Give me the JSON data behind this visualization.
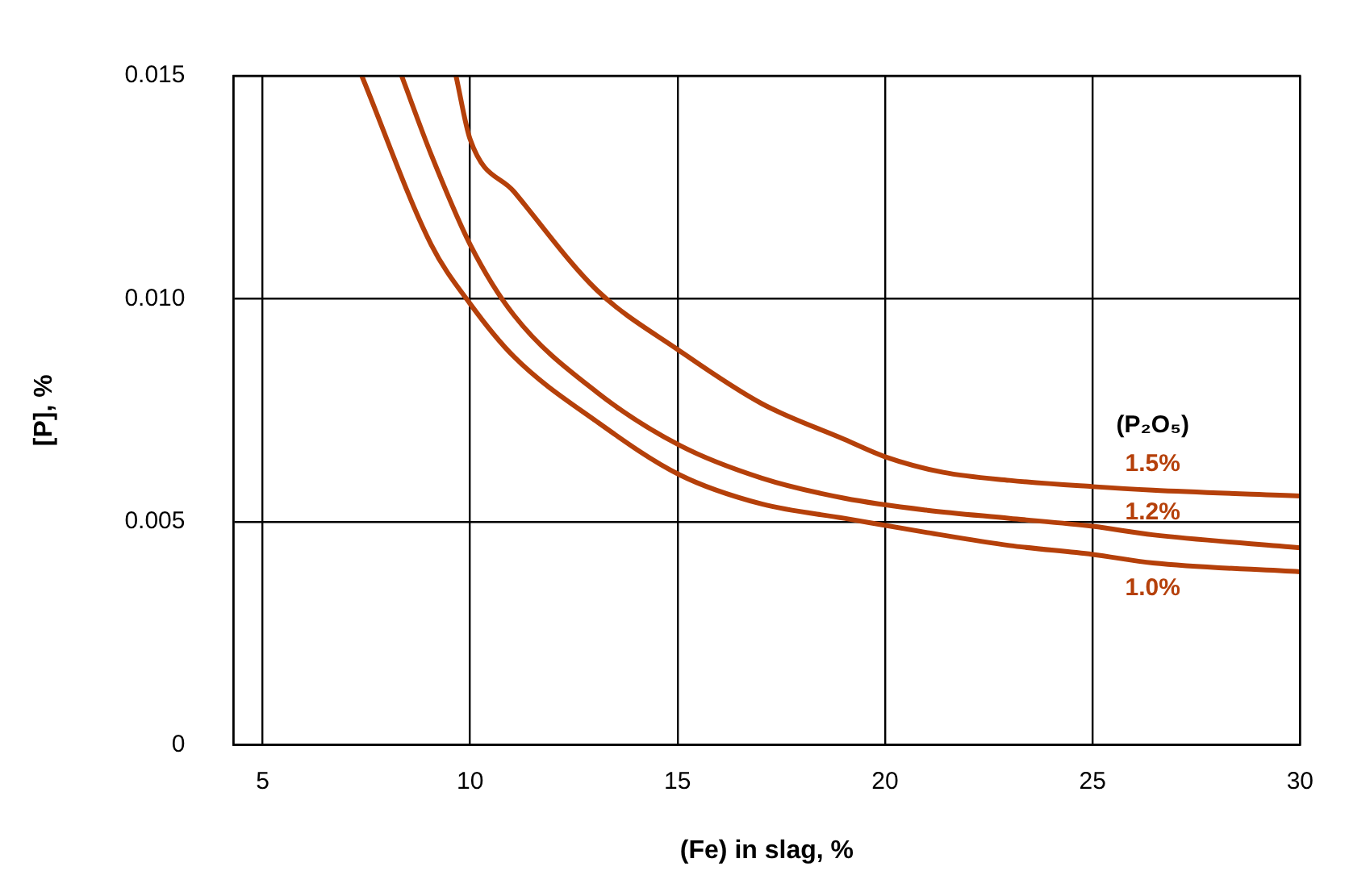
{
  "chart_data": {
    "type": "line",
    "xlabel": "(Fe) in slag, %",
    "ylabel": "[P], %",
    "legend_title": "(P₂O₅)",
    "xlim": [
      4.3,
      30
    ],
    "xticks": [
      5,
      10,
      15,
      20,
      25,
      30
    ],
    "ylim": [
      0,
      0.015
    ],
    "yticks": [
      0,
      0.005,
      {
        "value": 0.01,
        "label": "0.010"
      },
      0.015
    ],
    "grid": true,
    "legend": false,
    "marker": "none",
    "line_style": "solid",
    "series": [
      {
        "name": "1.5%",
        "color": "#b5400a",
        "x": [
          9.66,
          10,
          11.06,
          13.05,
          15.04,
          17.03,
          19.02,
          20,
          21.4,
          23,
          25,
          26.45,
          30
        ],
        "values": [
          0.015,
          0.01358,
          0.0124,
          0.0102,
          0.00884,
          0.00765,
          0.00685,
          0.00646,
          0.00611,
          0.00593,
          0.00579,
          0.00571,
          0.00558
        ]
      },
      {
        "name": "1.2%",
        "color": "#b5400a",
        "x": [
          8.35,
          9.06,
          10,
          11.06,
          13.05,
          15.04,
          17.03,
          19.02,
          21.02,
          23,
          25,
          26.45,
          30
        ],
        "values": [
          0.015,
          0.01324,
          0.01122,
          0.00963,
          0.00791,
          0.00672,
          0.00598,
          0.00553,
          0.00526,
          0.00508,
          0.0049,
          0.00471,
          0.00442
        ]
      },
      {
        "name": "1.0%",
        "color": "#b5400a",
        "x": [
          7.39,
          9.06,
          10,
          11.06,
          13.05,
          15.04,
          17.03,
          19.02,
          21.02,
          23,
          25,
          26.45,
          30
        ],
        "values": [
          0.015,
          0.01122,
          0.00989,
          0.0087,
          0.00725,
          0.00606,
          0.0054,
          0.00508,
          0.00476,
          0.00447,
          0.00427,
          0.00408,
          0.00388
        ]
      }
    ]
  }
}
